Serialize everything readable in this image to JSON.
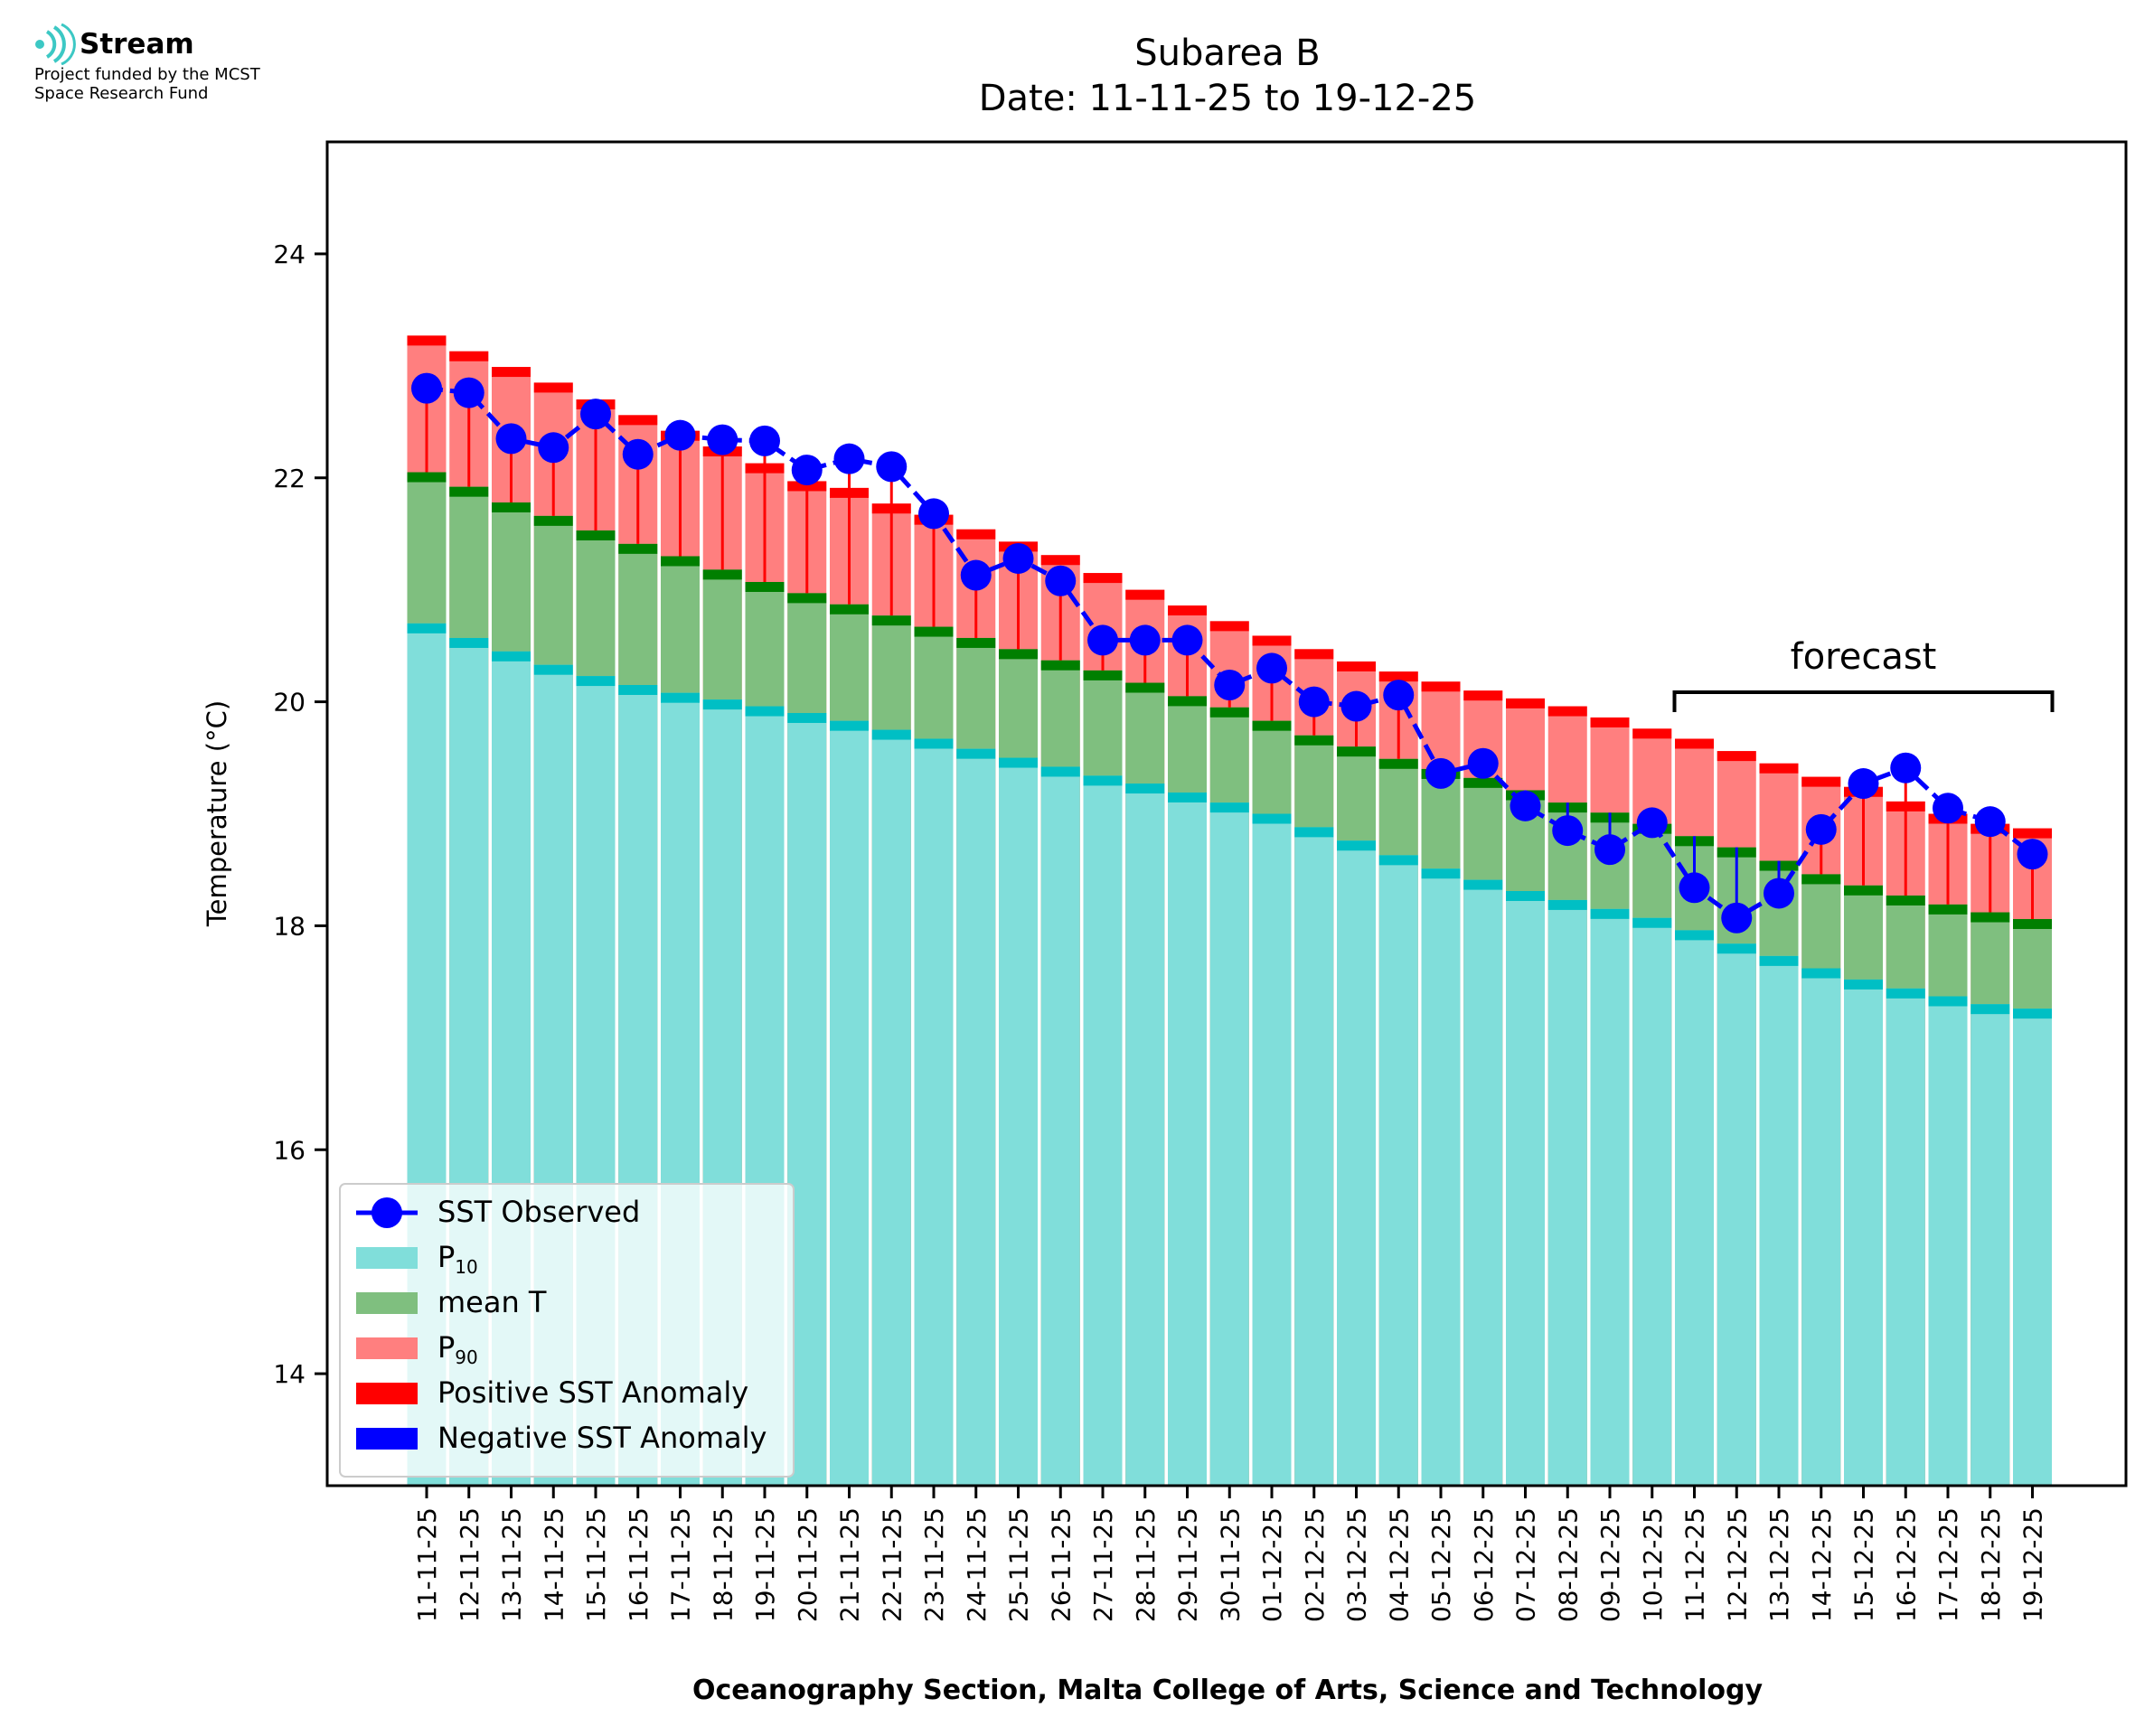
{
  "logo": {
    "name": "Stream",
    "line1": "Project funded by the MCST",
    "line2": "Space Research Fund"
  },
  "chart_data": {
    "type": "bar",
    "title": "Subarea B",
    "subtitle": "Date: 11-11-25 to 19-12-25",
    "xlabel": "Oceanography Section, Malta College of Arts, Science and Technology",
    "ylabel": "Temperature (°C)",
    "ylim": [
      13,
      25
    ],
    "yticks": [
      14,
      16,
      18,
      20,
      22,
      24
    ],
    "grid": false,
    "legend_position": "lower-left",
    "annotation": "forecast",
    "forecast_range": [
      "11-12-25",
      "19-12-25"
    ],
    "categories": [
      "11-11-25",
      "12-11-25",
      "13-11-25",
      "14-11-25",
      "15-11-25",
      "16-11-25",
      "17-11-25",
      "18-11-25",
      "19-11-25",
      "20-11-25",
      "21-11-25",
      "22-11-25",
      "23-11-25",
      "24-11-25",
      "25-11-25",
      "26-11-25",
      "27-11-25",
      "28-11-25",
      "29-11-25",
      "30-11-25",
      "01-12-25",
      "02-12-25",
      "03-12-25",
      "04-12-25",
      "05-12-25",
      "06-12-25",
      "07-12-25",
      "08-12-25",
      "09-12-25",
      "10-12-25",
      "11-12-25",
      "12-12-25",
      "13-12-25",
      "14-12-25",
      "15-12-25",
      "16-12-25",
      "17-12-25",
      "18-12-25",
      "19-12-25"
    ],
    "series": [
      {
        "name": "P10",
        "color": "#80deda",
        "edge_color": "#00bfc4",
        "values": [
          20.7,
          20.57,
          20.45,
          20.33,
          20.23,
          20.15,
          20.08,
          20.02,
          19.96,
          19.9,
          19.83,
          19.75,
          19.67,
          19.58,
          19.5,
          19.42,
          19.34,
          19.27,
          19.19,
          19.1,
          19.0,
          18.88,
          18.76,
          18.63,
          18.51,
          18.41,
          18.31,
          18.23,
          18.15,
          18.07,
          17.96,
          17.84,
          17.73,
          17.62,
          17.52,
          17.44,
          17.37,
          17.3,
          17.26
        ]
      },
      {
        "name": "mean T",
        "color": "#7fbf7f",
        "edge_color": "#007f00",
        "values": [
          22.05,
          21.92,
          21.78,
          21.66,
          21.53,
          21.41,
          21.3,
          21.18,
          21.07,
          20.97,
          20.87,
          20.77,
          20.67,
          20.57,
          20.47,
          20.37,
          20.28,
          20.17,
          20.05,
          19.95,
          19.83,
          19.7,
          19.6,
          19.49,
          19.4,
          19.32,
          19.21,
          19.1,
          19.01,
          18.91,
          18.8,
          18.7,
          18.58,
          18.46,
          18.36,
          18.27,
          18.19,
          18.12,
          18.06
        ]
      },
      {
        "name": "P90",
        "color": "#ff7f7f",
        "edge_color": "#ff0000",
        "values": [
          23.27,
          23.13,
          22.99,
          22.85,
          22.7,
          22.56,
          22.42,
          22.28,
          22.13,
          21.97,
          21.91,
          21.77,
          21.67,
          21.54,
          21.43,
          21.31,
          21.15,
          21.0,
          20.86,
          20.72,
          20.59,
          20.47,
          20.36,
          20.27,
          20.18,
          20.1,
          20.03,
          19.96,
          19.86,
          19.76,
          19.67,
          19.56,
          19.45,
          19.33,
          19.24,
          19.11,
          19.0,
          18.91,
          18.87
        ]
      },
      {
        "name": "SST Observed",
        "color": "#0000ff",
        "values": [
          22.8,
          22.76,
          22.35,
          22.27,
          22.57,
          22.21,
          22.38,
          22.34,
          22.33,
          22.07,
          22.17,
          22.1,
          21.68,
          21.13,
          21.28,
          21.08,
          20.55,
          20.55,
          20.55,
          20.15,
          20.3,
          20.0,
          19.96,
          20.06,
          19.36,
          19.45,
          19.07,
          18.85,
          18.68,
          18.92,
          18.34,
          18.07,
          18.29,
          18.86,
          19.27,
          19.41,
          19.05,
          18.93,
          18.64
        ]
      }
    ],
    "legend": [
      {
        "label": "SST Observed",
        "kind": "line",
        "color": "#0000ff"
      },
      {
        "label": "P",
        "sub": "10",
        "kind": "patch",
        "color": "#80deda"
      },
      {
        "label": "mean T",
        "kind": "patch",
        "color": "#7fbf7f"
      },
      {
        "label": "P",
        "sub": "90",
        "kind": "patch",
        "color": "#ff7f7f"
      },
      {
        "label": "Positive SST Anomaly",
        "kind": "patch",
        "color": "#ff0000"
      },
      {
        "label": "Negative SST Anomaly",
        "kind": "patch",
        "color": "#0000ff"
      }
    ],
    "anomaly_colors": {
      "positive": "#ff0000",
      "negative": "#0000ff"
    }
  }
}
